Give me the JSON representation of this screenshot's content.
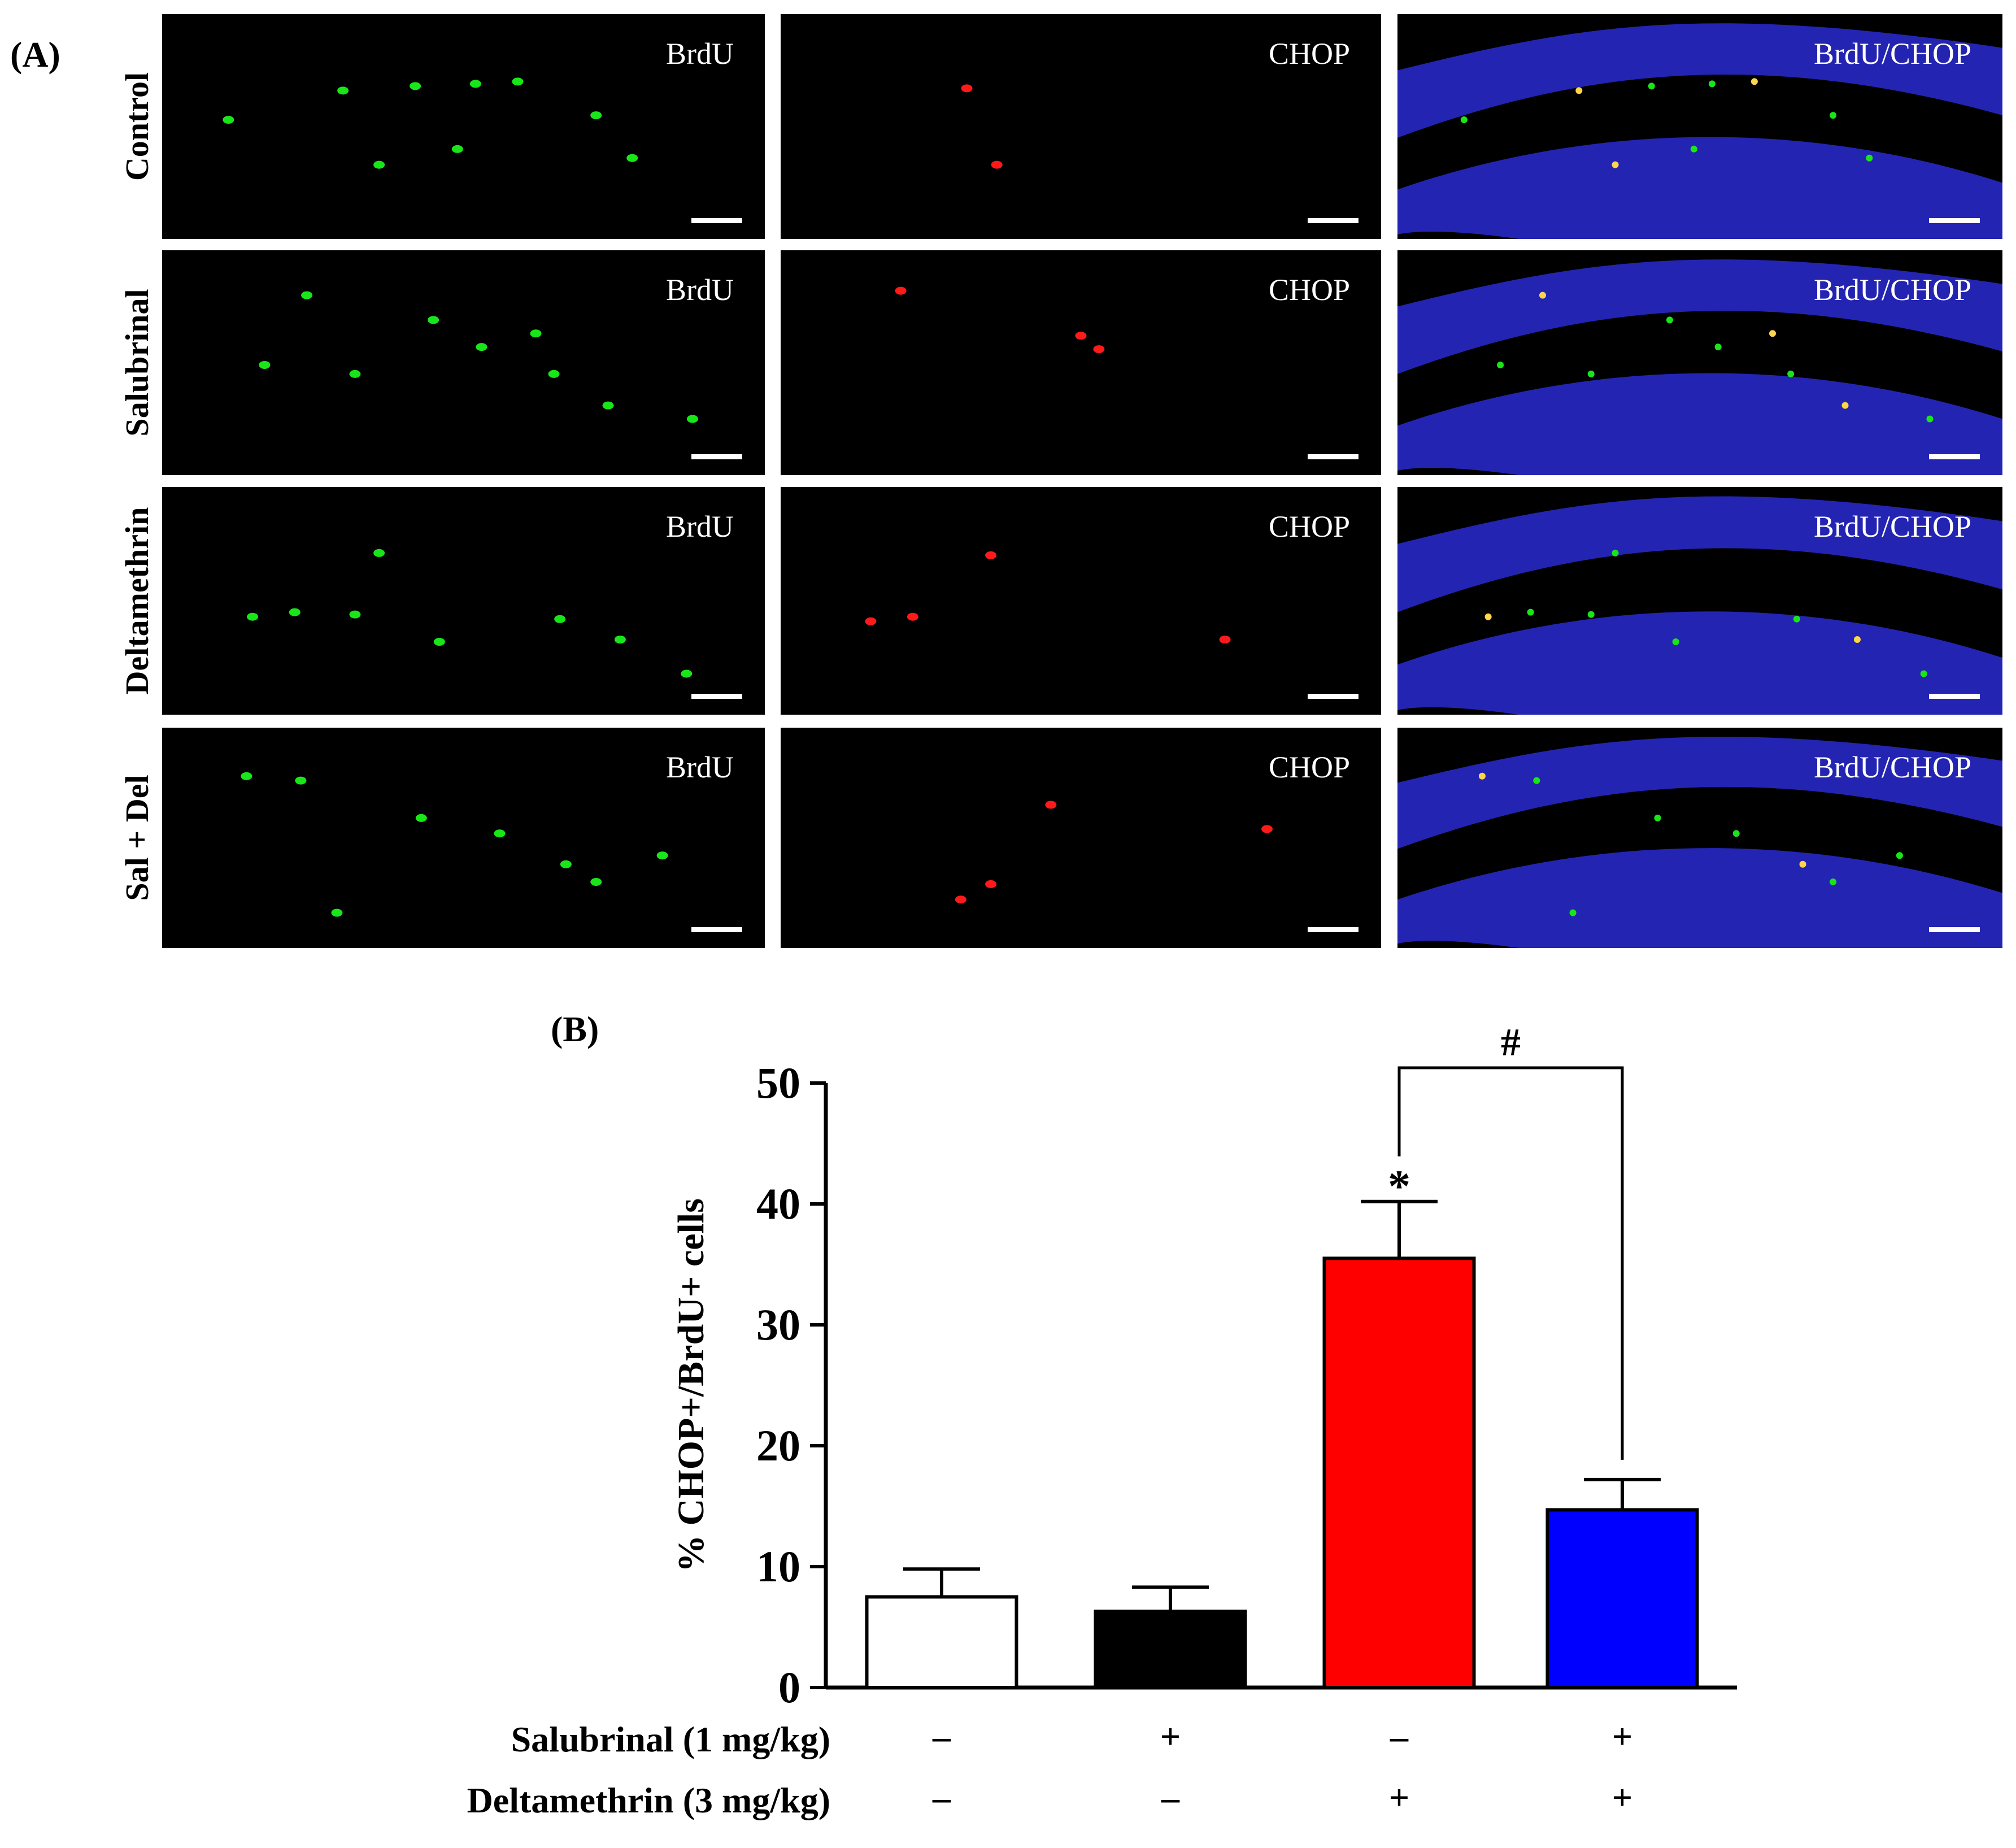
{
  "figure_a": {
    "panel_label": "(A)",
    "rows": [
      {
        "label": "Control"
      },
      {
        "label": "Salubrinal"
      },
      {
        "label": "Deltamethrin"
      },
      {
        "label": "Sal + Del"
      }
    ],
    "columns": [
      {
        "label": "BrdU",
        "kind": "green"
      },
      {
        "label": "CHOP",
        "kind": "red"
      },
      {
        "label": "BrdU/CHOP",
        "kind": "merge"
      }
    ],
    "colors": {
      "green": "#19e619",
      "red": "#ff1a1a",
      "merge_yellow": "#ffd54a",
      "dapi_blue": "#2a2ad2",
      "background": "#000000"
    }
  },
  "figure_b": {
    "panel_label": "(B)",
    "chart_data": {
      "type": "bar",
      "ylabel": "% CHOP+/BrdU+ cells",
      "ylim": [
        0,
        50
      ],
      "yticks": [
        0,
        10,
        20,
        30,
        40,
        50
      ],
      "values": [
        7.5,
        6.3,
        35.5,
        14.7
      ],
      "errors": [
        2.3,
        2.0,
        4.7,
        2.5
      ],
      "bar_colors": [
        "#ffffff",
        "#000000",
        "#ff0000",
        "#0000ff"
      ],
      "annotations": {
        "star": "*",
        "hash": "#"
      },
      "treatments": [
        {
          "label": "Salubrinal (1 mg/kg)",
          "signs": [
            "–",
            "+",
            "–",
            "+"
          ]
        },
        {
          "label": "Deltamethrin (3 mg/kg)",
          "signs": [
            "–",
            "–",
            "+",
            "+"
          ]
        }
      ]
    }
  }
}
